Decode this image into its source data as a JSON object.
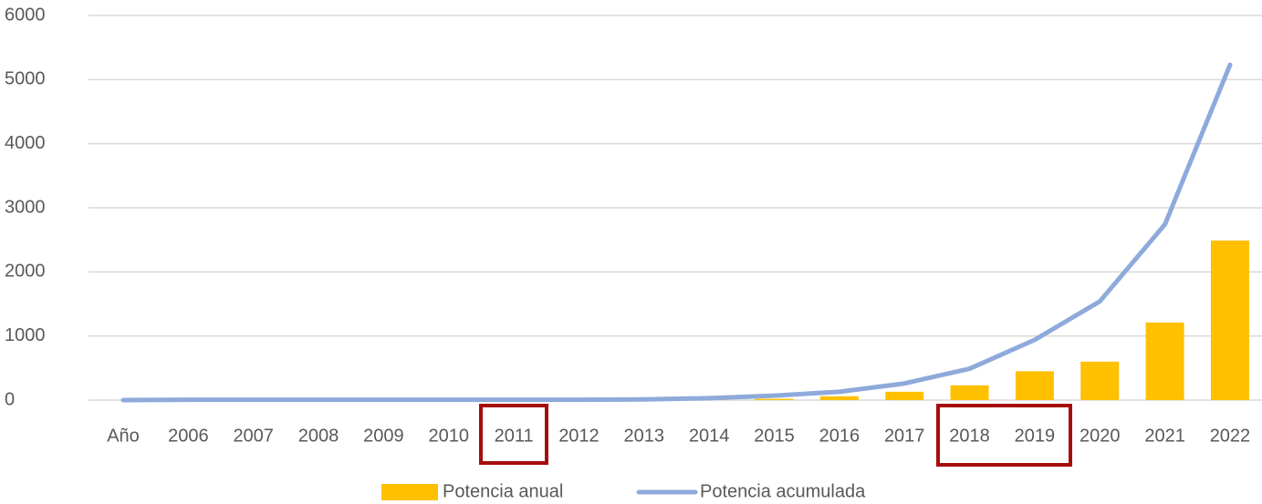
{
  "chart_data": {
    "type": "bar_line",
    "categories": [
      "Año",
      "2006",
      "2007",
      "2008",
      "2009",
      "2010",
      "2011",
      "2012",
      "2013",
      "2014",
      "2015",
      "2016",
      "2017",
      "2018",
      "2019",
      "2020",
      "2021",
      "2022"
    ],
    "series": [
      {
        "name": "Potencia anual",
        "type": "bar",
        "color": "#ffc000",
        "values": [
          0,
          0,
          0,
          0,
          0,
          0,
          0,
          0,
          0,
          5,
          20,
          60,
          130,
          230,
          450,
          600,
          1210,
          2490
        ]
      },
      {
        "name": "Potencia acumulada",
        "type": "line",
        "color": "#8eaadb",
        "values": [
          0,
          5,
          5,
          5,
          5,
          5,
          5,
          5,
          10,
          30,
          70,
          130,
          260,
          490,
          940,
          1540,
          2740,
          5230
        ]
      }
    ],
    "ylim": [
      0,
      6000
    ],
    "yticks": [
      0,
      1000,
      2000,
      3000,
      4000,
      5000,
      6000
    ],
    "grid": true,
    "legend": "bottom"
  }
}
